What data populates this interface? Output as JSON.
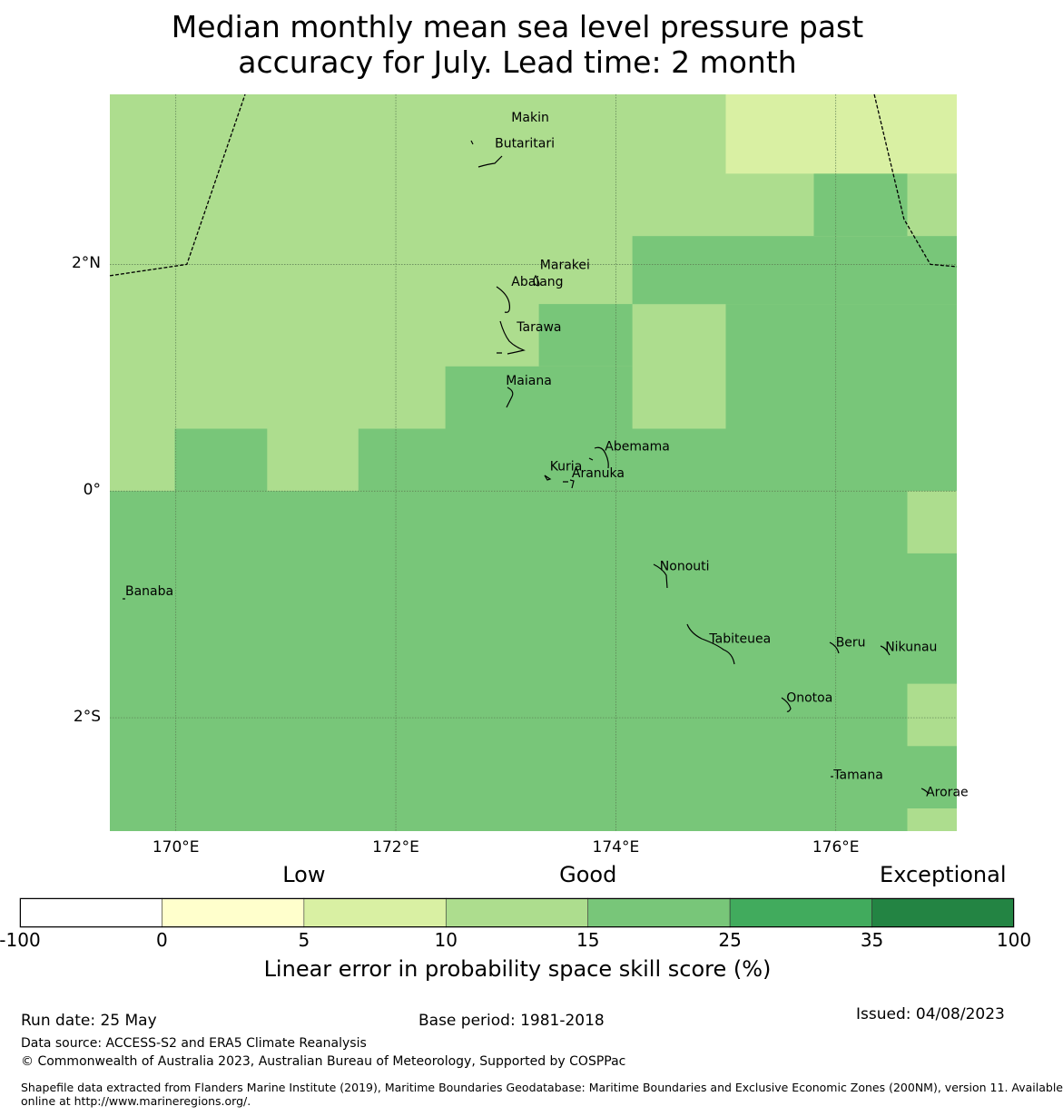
{
  "title": {
    "line1": "Median monthly mean sea level pressure past",
    "line2": "accuracy for July. Lead time: 2 month"
  },
  "map": {
    "lon_range": [
      169.4,
      177.1
    ],
    "lat_range": [
      -3.0,
      3.5
    ],
    "x_ticks": [
      {
        "value": 170,
        "label": "170°E"
      },
      {
        "value": 172,
        "label": "172°E"
      },
      {
        "value": 174,
        "label": "174°E"
      },
      {
        "value": 176,
        "label": "176°E"
      }
    ],
    "y_ticks": [
      {
        "value": 2,
        "label": "2°N"
      },
      {
        "value": 0,
        "label": "0°"
      },
      {
        "value": -2,
        "label": "2°S"
      }
    ],
    "places": [
      {
        "name": "Makin",
        "lon": 173.05,
        "lat": 3.3
      },
      {
        "name": "Butaritari",
        "lon": 172.9,
        "lat": 3.07
      },
      {
        "name": "Marakei",
        "lon": 173.31,
        "lat": 2.0
      },
      {
        "name": "Abaiang",
        "lon": 173.05,
        "lat": 1.85
      },
      {
        "name": "Tarawa",
        "lon": 173.1,
        "lat": 1.45
      },
      {
        "name": "Maiana",
        "lon": 173.0,
        "lat": 0.98
      },
      {
        "name": "Abemama",
        "lon": 173.9,
        "lat": 0.4
      },
      {
        "name": "Kuria",
        "lon": 173.4,
        "lat": 0.22
      },
      {
        "name": "Aranuka",
        "lon": 173.6,
        "lat": 0.16
      },
      {
        "name": "Banaba",
        "lon": 169.54,
        "lat": -0.88
      },
      {
        "name": "Nonouti",
        "lon": 174.4,
        "lat": -0.66
      },
      {
        "name": "Tabiteuea",
        "lon": 174.85,
        "lat": -1.3
      },
      {
        "name": "Beru",
        "lon": 176.0,
        "lat": -1.33
      },
      {
        "name": "Nikunau",
        "lon": 176.45,
        "lat": -1.37
      },
      {
        "name": "Onotoa",
        "lon": 175.55,
        "lat": -1.82
      },
      {
        "name": "Tamana",
        "lon": 175.98,
        "lat": -2.5
      },
      {
        "name": "Arorae",
        "lon": 176.82,
        "lat": -2.65
      }
    ],
    "skill_grid": {
      "note": "Median LEPS skill score category per cell",
      "cells": [
        {
          "lon": [
            169.4,
            177.1
          ],
          "lat": [
            0.0,
            3.5
          ],
          "category": "10-15"
        },
        {
          "lon": [
            169.4,
            177.1
          ],
          "lat": [
            -3.0,
            0.0
          ],
          "category": "15-25"
        },
        {
          "lon": [
            175.0,
            177.1
          ],
          "lat": [
            2.8,
            3.5
          ],
          "category": "5-10"
        },
        {
          "lon": [
            175.8,
            176.65
          ],
          "lat": [
            2.25,
            2.8
          ],
          "category": "15-25"
        },
        {
          "lon": [
            176.65,
            177.1
          ],
          "lat": [
            2.25,
            2.8
          ],
          "category": "10-15"
        },
        {
          "lon": [
            174.15,
            177.1
          ],
          "lat": [
            1.65,
            2.25
          ],
          "category": "15-25"
        },
        {
          "lon": [
            173.3,
            174.15
          ],
          "lat": [
            1.1,
            1.65
          ],
          "category": "15-25"
        },
        {
          "lon": [
            175.0,
            177.1
          ],
          "lat": [
            0.55,
            1.65
          ],
          "category": "15-25"
        },
        {
          "lon": [
            172.45,
            174.15
          ],
          "lat": [
            0.55,
            1.1
          ],
          "category": "15-25"
        },
        {
          "lon": [
            169.99,
            170.83
          ],
          "lat": [
            0.0,
            0.55
          ],
          "category": "15-25"
        },
        {
          "lon": [
            171.66,
            177.1
          ],
          "lat": [
            0.0,
            0.55
          ],
          "category": "15-25"
        },
        {
          "lon": [
            176.65,
            177.1
          ],
          "lat": [
            -0.55,
            0.0
          ],
          "category": "10-15"
        },
        {
          "lon": [
            176.65,
            177.1
          ],
          "lat": [
            -2.25,
            -1.7
          ],
          "category": "10-15"
        },
        {
          "lon": [
            176.65,
            177.1
          ],
          "lat": [
            -3.0,
            -2.8
          ],
          "category": "10-15"
        }
      ]
    },
    "boundaries": [
      [
        [
          169.4,
          1.9
        ],
        [
          170.1,
          2.0
        ],
        [
          170.63,
          3.5
        ]
      ],
      [
        [
          176.35,
          3.5
        ],
        [
          176.62,
          2.4
        ],
        [
          176.86,
          2.0
        ],
        [
          177.1,
          1.98
        ]
      ]
    ]
  },
  "colorbar": {
    "categories": [
      {
        "label": "Low",
        "at": 2
      },
      {
        "label": "Good",
        "at": 4
      },
      {
        "label": "Exceptional",
        "at": 6.5
      }
    ],
    "segments": [
      {
        "range": "-100-0",
        "color": "#ffffff"
      },
      {
        "range": "0-5",
        "color": "#ffffcc"
      },
      {
        "range": "5-10",
        "color": "#d9f0a3"
      },
      {
        "range": "10-15",
        "color": "#addd8e"
      },
      {
        "range": "15-25",
        "color": "#78c679"
      },
      {
        "range": "25-35",
        "color": "#41ab5d"
      },
      {
        "range": "35-100",
        "color": "#238443"
      }
    ],
    "tick_labels": [
      "-100",
      "0",
      "5",
      "10",
      "15",
      "25",
      "35",
      "100"
    ],
    "label": "Linear error in probability space skill score (%)"
  },
  "footer": {
    "run_date": "Run date: 25 May",
    "base_period": "Base period: 1981-2018",
    "issued": "Issued: 04/08/2023",
    "data_source": "Data source: ACCESS-S2 and ERA5 Climate Reanalysis",
    "copyright": "© Commonwealth of Australia 2023, Australian Bureau of Meteorology, Supported by COSPPac",
    "shapefile_line1": "Shapefile data extracted from Flanders Marine Institute (2019), Maritime Boundaries Geodatabase: Maritime Boundaries and Exclusive Economic Zones (200NM), version 11. Available",
    "shapefile_line2": "online at http://www.marineregions.org/."
  }
}
